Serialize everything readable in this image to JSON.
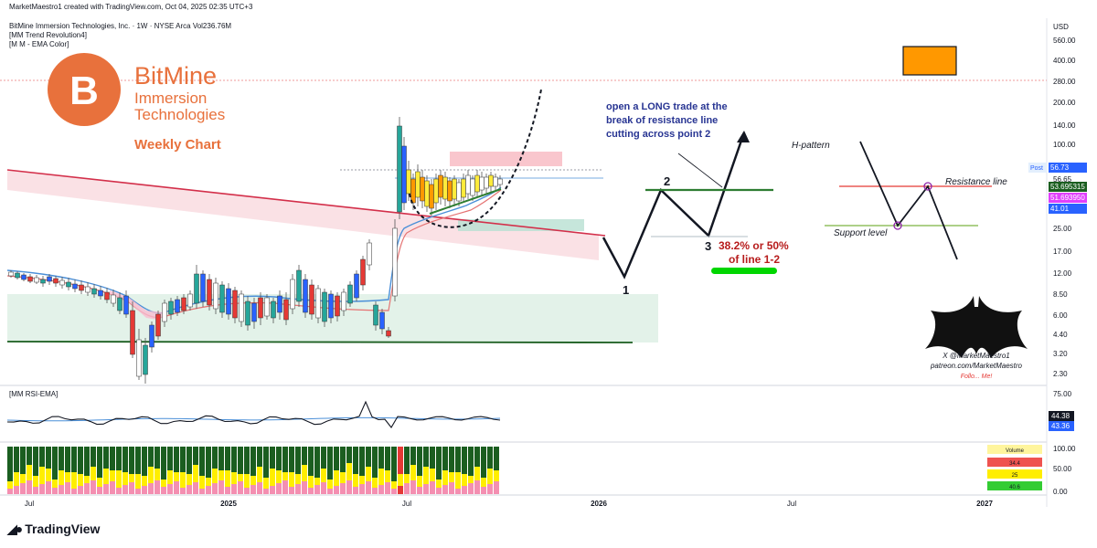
{
  "header": {
    "credit": "MarketMaestro1 created with TradingView.com, Oct 04, 2025 02:35 UTC+3",
    "symbol_line": "BitMine Immersion Technologies, Inc. · 1W · NYSE Arca  Vol236.76M",
    "indicator1": "[MM Trend Revolution4]",
    "indicator2": "[M M - EMA Color]"
  },
  "logo": {
    "symbol": "B",
    "line1": "BitMine",
    "line2": "Immersion",
    "line3": "Technologies",
    "chart_label": "Weekly Chart"
  },
  "annotations": {
    "long_trade": [
      "open a LONG trade at the",
      "break of resistance line",
      "cutting across point 2"
    ],
    "point1": "1",
    "point2": "2",
    "point3": "3",
    "retrace": [
      "38.2% or 50%",
      "of line 1-2"
    ],
    "h_pattern": "H-pattern",
    "resistance": "Resistance line",
    "support": "Support level",
    "social": [
      "X @MarketMaestro1",
      "patreon.com/MarketMaestro",
      "Follo... Me!"
    ]
  },
  "colors": {
    "brand": "#e8713c",
    "up": "#ffffff",
    "down": "#e53935",
    "blue": "#2962ff",
    "teal": "#26a69a",
    "ema_fast": "#4a8fd8",
    "trend_red": "#d32f4a",
    "support_green": "#1b5e20",
    "orange_box": "#ff9800"
  },
  "price_axis": {
    "currency": "USD",
    "ticks": [
      "560.00",
      "400.00",
      "280.00",
      "200.00",
      "140.00",
      "100.00",
      "56.65",
      "25.00",
      "17.00",
      "12.00",
      "8.50",
      "6.00",
      "4.40",
      "3.20",
      "2.30"
    ],
    "badges": [
      {
        "label": "Post",
        "value": "56.73",
        "bg": "#2962ff",
        "fg": "#ffffff"
      },
      {
        "label": "",
        "value": "53.695315",
        "bg": "#1b5e20",
        "fg": "#ffffff"
      },
      {
        "label": "",
        "value": "51.693950",
        "bg": "#e040fb",
        "fg": "#ffffff"
      },
      {
        "label": "",
        "value": "41.01",
        "bg": "#2962ff",
        "fg": "#ffffff"
      }
    ]
  },
  "rsi": {
    "title": "[MM RSI-EMA]",
    "ticks": [
      "75.00"
    ],
    "badges": [
      {
        "value": "44.38",
        "bg": "#131722"
      },
      {
        "value": "43.36",
        "bg": "#2962ff"
      }
    ]
  },
  "volume_panel": {
    "ticks": [
      "100.00",
      "50.00",
      "0.00"
    ],
    "legend_title": "Volume",
    "legend_values": [
      "34.4",
      "25",
      "40.6"
    ]
  },
  "time_axis": [
    "Jul",
    "2025",
    "Jul",
    "2026",
    "Jul",
    "2027"
  ],
  "footer": {
    "brand": "TradingView"
  },
  "chart_data": {
    "type": "candlestick",
    "timeframe": "1W",
    "y_scale": "log",
    "ylim": [
      2.3,
      560
    ],
    "support_level": 3.9,
    "trend_line_end": 21.5,
    "series": [
      {
        "name": "MM RSI-EMA",
        "type": "line"
      },
      {
        "name": "Volume",
        "type": "bar"
      }
    ]
  }
}
